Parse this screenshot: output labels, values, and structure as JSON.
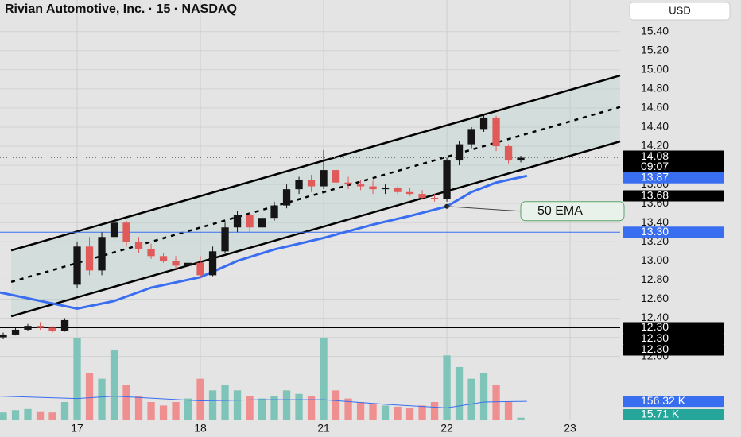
{
  "chart_data": {
    "type": "candlestick",
    "title": "Rivian Automotive, Inc. · 15 · NASDAQ",
    "currency": "USD",
    "xlim": [
      -0.626,
      4.406
    ],
    "xticks": [
      {
        "value": 0,
        "label": "17"
      },
      {
        "value": 1,
        "label": "18"
      },
      {
        "value": 2,
        "label": "21"
      },
      {
        "value": 3,
        "label": "22"
      },
      {
        "value": 4,
        "label": "23"
      }
    ],
    "ylim": [
      11.34,
      15.73
    ],
    "yticks": [
      {
        "value": 12,
        "label": "12.00"
      },
      {
        "value": 12.2,
        "label": "12.20"
      },
      {
        "value": 12.4,
        "label": "12.40"
      },
      {
        "value": 12.6,
        "label": "12.60"
      },
      {
        "value": 12.8,
        "label": "12.80"
      },
      {
        "value": 13,
        "label": "13.00"
      },
      {
        "value": 13.2,
        "label": "13.20"
      },
      {
        "value": 13.4,
        "label": "13.40"
      },
      {
        "value": 13.6,
        "label": "13.60"
      },
      {
        "value": 13.8,
        "label": "13.80"
      },
      {
        "value": 14,
        "label": "14.00"
      },
      {
        "value": 14.2,
        "label": "14.20"
      },
      {
        "value": 14.4,
        "label": "14.40"
      },
      {
        "value": 14.6,
        "label": "14.60"
      },
      {
        "value": 14.8,
        "label": "14.80"
      },
      {
        "value": 15,
        "label": "15.00"
      },
      {
        "value": 15.2,
        "label": "15.20"
      },
      {
        "value": 15.4,
        "label": "15.40"
      }
    ],
    "y2lim": [
      0,
      3600
    ],
    "grid": true,
    "up_color": "#151515",
    "down_color": "#e05a5a",
    "volume_up_color": "#7fc4b8",
    "volume_down_color": "#ef8f8f",
    "x": [
      -0.6,
      -0.5,
      -0.4,
      -0.3,
      -0.2,
      -0.1,
      0,
      0.1,
      0.2,
      0.3,
      0.4,
      0.5,
      0.6,
      0.7,
      0.8,
      0.9,
      1,
      1.1,
      1.2,
      1.3,
      1.4,
      1.5,
      1.6,
      1.7,
      1.8,
      1.9,
      2,
      2.1,
      2.2,
      2.3,
      2.4,
      2.5,
      2.6,
      2.7,
      2.8,
      2.9,
      3,
      3.1,
      3.2,
      3.3,
      3.4,
      3.5,
      3.6
    ],
    "open": [
      12.2,
      12.23,
      12.28,
      12.32,
      12.3,
      12.27,
      12.75,
      13.15,
      12.9,
      13.25,
      13.4,
      13.2,
      13.12,
      13.05,
      13,
      12.95,
      12.98,
      12.85,
      13.1,
      13.35,
      13.48,
      13.35,
      13.45,
      13.58,
      13.75,
      13.85,
      13.78,
      13.95,
      13.82,
      13.8,
      13.78,
      13.75,
      13.76,
      13.72,
      13.7,
      13.66,
      13.65,
      14.05,
      14.22,
      14.38,
      14.5,
      14.2,
      14.05
    ],
    "high": [
      12.25,
      12.3,
      12.34,
      12.36,
      12.32,
      12.4,
      13.2,
      13.25,
      13.3,
      13.5,
      13.42,
      13.25,
      13.18,
      13.08,
      13.05,
      13.02,
      13.05,
      13.15,
      13.4,
      13.52,
      13.5,
      13.5,
      13.62,
      13.8,
      13.88,
      13.9,
      14.16,
      13.98,
      13.88,
      13.85,
      13.84,
      13.8,
      13.78,
      13.76,
      13.74,
      13.7,
      14.08,
      14.25,
      14.4,
      14.52,
      14.52,
      14.22,
      14.1
    ],
    "low": [
      12.18,
      12.22,
      12.27,
      12.28,
      12.25,
      12.26,
      12.72,
      12.85,
      12.85,
      13.2,
      13.15,
      13.08,
      13.02,
      12.98,
      12.92,
      12.9,
      12.82,
      12.84,
      13.08,
      13.3,
      13.3,
      13.33,
      13.42,
      13.55,
      13.7,
      13.72,
      13.75,
      13.78,
      13.75,
      13.74,
      13.7,
      13.7,
      13.7,
      13.68,
      13.64,
      13.62,
      13.62,
      14,
      14.18,
      14.35,
      14.15,
      14.02,
      14.03
    ],
    "close": [
      12.23,
      12.28,
      12.32,
      12.3,
      12.27,
      12.38,
      13.15,
      12.9,
      13.25,
      13.4,
      13.2,
      13.12,
      13.05,
      13,
      12.95,
      12.98,
      12.85,
      13.1,
      13.35,
      13.48,
      13.35,
      13.45,
      13.58,
      13.75,
      13.85,
      13.78,
      13.95,
      13.82,
      13.8,
      13.78,
      13.75,
      13.76,
      13.72,
      13.7,
      13.66,
      13.65,
      14.05,
      14.22,
      14.38,
      14.5,
      14.2,
      14.05,
      14.08
    ],
    "volume": [
      60,
      80,
      90,
      70,
      60,
      150,
      700,
      400,
      350,
      600,
      300,
      200,
      150,
      120,
      150,
      180,
      350,
      250,
      300,
      250,
      200,
      180,
      200,
      250,
      220,
      200,
      700,
      250,
      180,
      150,
      140,
      120,
      110,
      100,
      120,
      150,
      550,
      450,
      350,
      400,
      300,
      150,
      15.71
    ],
    "ema": {
      "name": "50 EMA",
      "color": "#3a6ef0",
      "x": [
        -0.626,
        0,
        0.3,
        0.6,
        1,
        1.3,
        1.6,
        2,
        2.4,
        2.7,
        3,
        3.2,
        3.4,
        3.65
      ],
      "values": [
        12.67,
        12.5,
        12.58,
        12.72,
        12.83,
        13,
        13.12,
        13.24,
        13.38,
        13.47,
        13.57,
        13.72,
        13.82,
        13.89
      ]
    },
    "channel": {
      "fill": "rgba(150,200,190,0.22)",
      "x": [
        -0.535,
        4.406
      ],
      "upper": [
        13.11,
        14.94
      ],
      "middle": [
        12.78,
        14.61
      ],
      "lower": [
        12.42,
        14.25
      ]
    },
    "hlines": [
      {
        "value": 13.3,
        "color": "#3a6ef0"
      },
      {
        "value": 12.3,
        "color": "#000000"
      }
    ],
    "last_price": {
      "value": 14.08,
      "label": "14.08",
      "countdown": "09:07",
      "color": "#000000"
    },
    "price_tags": [
      {
        "value": 13.87,
        "label": "13.87",
        "color": "#3a6ef0"
      },
      {
        "value": 13.68,
        "label": "13.68",
        "color": "#000000"
      },
      {
        "value": 13.3,
        "label": "13.30",
        "color": "#3a6ef0"
      },
      {
        "value": 12.3,
        "label": "12.30",
        "color": "#000000"
      },
      {
        "value": 12.3,
        "label": "12.30",
        "color": "#000000"
      },
      {
        "value": 12.3,
        "label": "12.30",
        "color": "#000000"
      }
    ],
    "volume_ma": {
      "color": "#3a6ef0",
      "x": [
        -0.626,
        0,
        0.3,
        1,
        1.5,
        2,
        2.5,
        3,
        3.3,
        3.65
      ],
      "values": [
        200,
        180,
        200,
        160,
        170,
        170,
        130,
        100,
        150,
        156.32
      ],
      "tag": {
        "value": 156.32,
        "label": "156.32 K"
      }
    },
    "volume_tag": {
      "value": 15.71,
      "label": "15.71 K",
      "color": "#26a69a"
    }
  }
}
